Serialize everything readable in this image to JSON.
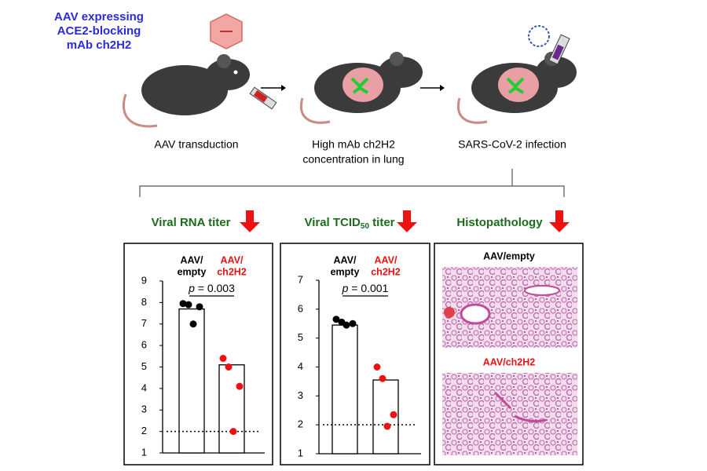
{
  "header": {
    "aav_label": [
      "AAV expressing",
      "ACE2-blocking",
      "mAb ch2H2"
    ],
    "steps": [
      {
        "label": [
          "AAV transduction"
        ]
      },
      {
        "label": [
          "High mAb ch2H2",
          "concentration in lung"
        ]
      },
      {
        "label": [
          "SARS-CoV-2 infection"
        ]
      }
    ]
  },
  "readouts": [
    {
      "title": [
        "Viral RNA titer"
      ]
    },
    {
      "title": [
        "Viral TCID",
        "50",
        " titer"
      ]
    },
    {
      "title": [
        "Histopathology"
      ]
    }
  ],
  "histology": {
    "images": [
      "AAV/empty",
      "AAV/ch2H2"
    ],
    "colors": [
      "#000000",
      "#ee1111"
    ]
  },
  "chart_data": [
    {
      "type": "bar",
      "categories": [
        [
          "AAV/",
          "empty"
        ],
        [
          "AAV/",
          "ch2H2"
        ]
      ],
      "values": [
        7.7,
        5.1
      ],
      "points": [
        [
          7.95,
          7.9,
          7.8,
          7.0
        ],
        [
          5.4,
          5.0,
          4.1,
          2.0
        ]
      ],
      "colors": [
        "#000000",
        "#ee1111"
      ],
      "ylim": [
        1,
        9
      ],
      "yticks": [
        1,
        2,
        3,
        4,
        5,
        6,
        7,
        8,
        9
      ],
      "reference_line": 2,
      "annotation": [
        "p",
        " = 0.003"
      ]
    },
    {
      "type": "bar",
      "categories": [
        [
          "AAV/",
          "empty"
        ],
        [
          "AAV/",
          "ch2H2"
        ]
      ],
      "values": [
        5.45,
        3.55
      ],
      "points": [
        [
          5.65,
          5.55,
          5.5,
          5.45
        ],
        [
          4.0,
          3.6,
          2.35,
          1.95
        ]
      ],
      "colors": [
        "#000000",
        "#ee1111"
      ],
      "ylim": [
        1,
        7
      ],
      "yticks": [
        1,
        2,
        3,
        4,
        5,
        6,
        7
      ],
      "reference_line": 2,
      "annotation": [
        "p",
        " = 0.001"
      ]
    }
  ]
}
